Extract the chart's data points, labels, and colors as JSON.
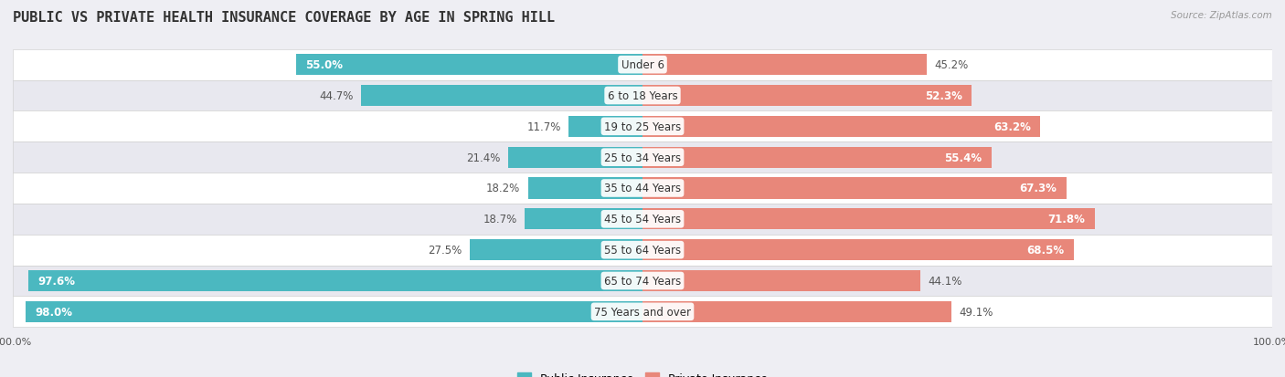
{
  "title": "PUBLIC VS PRIVATE HEALTH INSURANCE COVERAGE BY AGE IN SPRING HILL",
  "source": "Source: ZipAtlas.com",
  "categories": [
    "Under 6",
    "6 to 18 Years",
    "19 to 25 Years",
    "25 to 34 Years",
    "35 to 44 Years",
    "45 to 54 Years",
    "55 to 64 Years",
    "65 to 74 Years",
    "75 Years and over"
  ],
  "public_values": [
    55.0,
    44.7,
    11.7,
    21.4,
    18.2,
    18.7,
    27.5,
    97.6,
    98.0
  ],
  "private_values": [
    45.2,
    52.3,
    63.2,
    55.4,
    67.3,
    71.8,
    68.5,
    44.1,
    49.1
  ],
  "public_color": "#4BB8C0",
  "private_color": "#E8877A",
  "background_color": "#EEEEF3",
  "x_min": -100,
  "x_max": 100,
  "label_fontsize": 8.5,
  "title_fontsize": 11,
  "legend_fontsize": 9,
  "axis_label_fontsize": 8
}
